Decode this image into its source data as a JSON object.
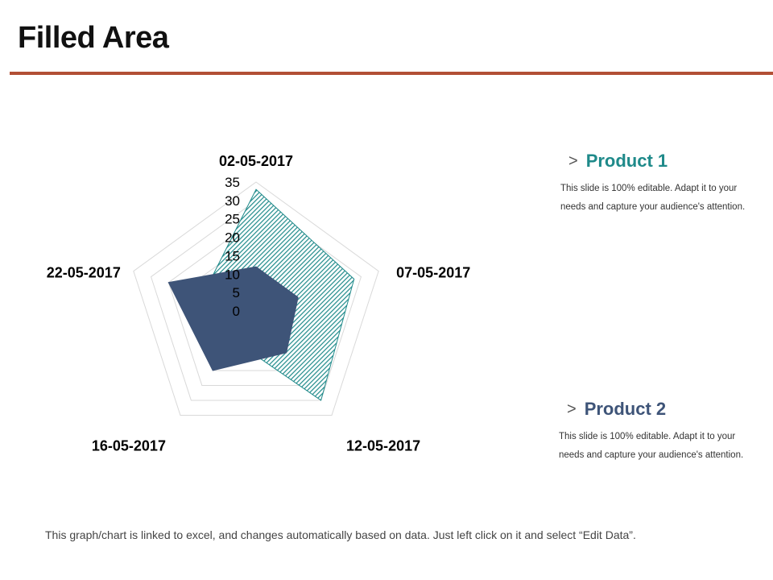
{
  "slide": {
    "title": "Filled Area",
    "footer": "This graph/chart is linked to excel, and changes automatically  based on data. Just left click on it and select “Edit Data”."
  },
  "legend": [
    {
      "name": "Product 1",
      "chevron": ">",
      "description": "This slide is 100% editable. Adapt it to your needs and capture your audience's attention.",
      "color": "#1f8a8a"
    },
    {
      "name": "Product 2",
      "chevron": ">",
      "description": "This slide is 100% editable. Adapt it to your needs and capture your audience's attention.",
      "color": "#3e5478"
    }
  ],
  "colors": {
    "rule": "#b24f35",
    "product1": "#1f8a8a",
    "product2": "#3e5478",
    "grid": "#d9d9d9"
  },
  "chart_data": {
    "type": "radar",
    "title": "",
    "categories": [
      "02-05-2017",
      "07-05-2017",
      "12-05-2017",
      "16-05-2017",
      "22-05-2017"
    ],
    "series": [
      {
        "name": "Product 1",
        "values": [
          33,
          28,
          30,
          10,
          15
        ],
        "fill": "hatched",
        "color": "#1f8a8a"
      },
      {
        "name": "Product 2",
        "values": [
          12,
          12,
          14,
          20,
          25
        ],
        "fill": "solid",
        "color": "#3e5478"
      }
    ],
    "rlim": [
      0,
      35
    ],
    "ticks": [
      "0",
      "5",
      "10",
      "15",
      "20",
      "25",
      "30",
      "35"
    ],
    "grid": true
  }
}
